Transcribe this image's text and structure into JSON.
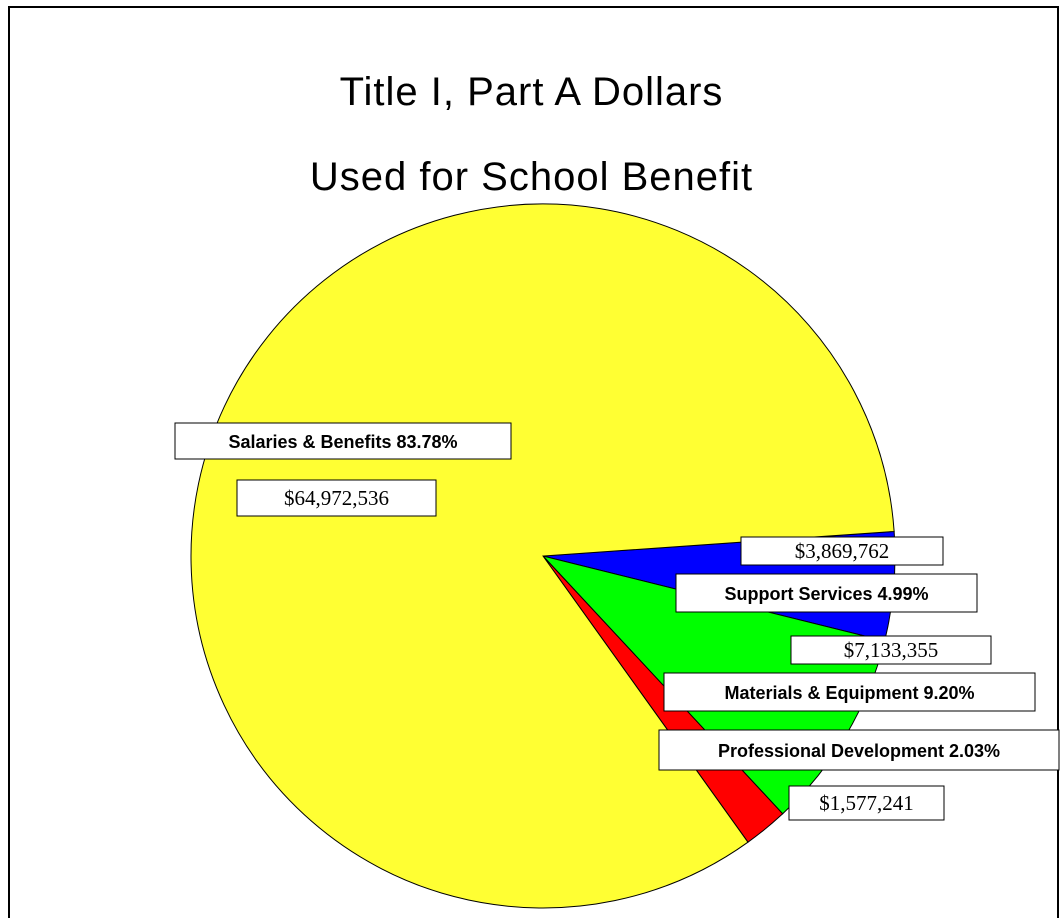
{
  "chart_data": {
    "type": "pie",
    "title": "Title I, Part A Dollars",
    "subtitle": "Used for School Benefit",
    "slices": [
      {
        "name": "Salaries & Benefits",
        "percent": 83.78,
        "percent_label": "Salaries & Benefits 83.78%",
        "amount": 64972536,
        "amount_label": "$64,972,536",
        "color": "#ffff33"
      },
      {
        "name": "Professional Development",
        "percent": 2.03,
        "percent_label": "Professional Development 2.03%",
        "amount": 1577241,
        "amount_label": "$1,577,241",
        "color": "#ff0000"
      },
      {
        "name": "Materials & Equipment",
        "percent": 9.2,
        "percent_label": "Materials & Equipment 9.20%",
        "amount": 7133355,
        "amount_label": "$7,133,355",
        "color": "#00ff00"
      },
      {
        "name": "Support Services",
        "percent": 4.99,
        "percent_label": "Support Services 4.99%",
        "amount": 3869762,
        "amount_label": "$3,869,762",
        "color": "#0000ff"
      }
    ]
  }
}
